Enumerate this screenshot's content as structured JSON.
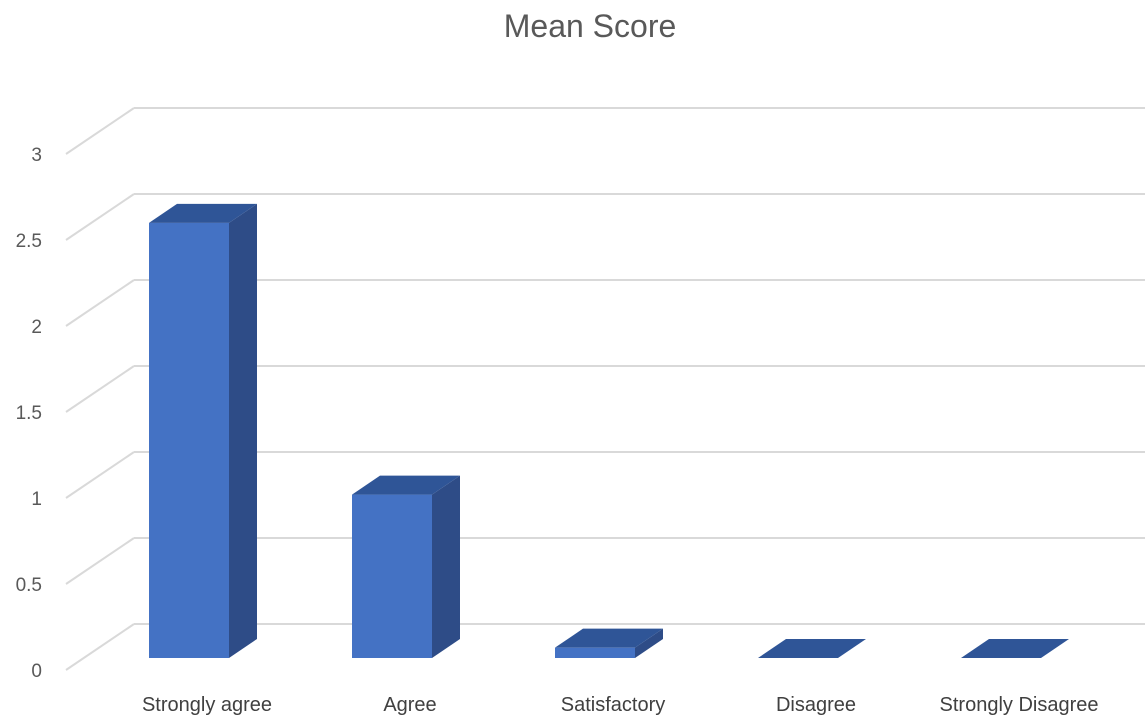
{
  "chart_data": {
    "type": "bar",
    "title": "Mean Score",
    "xlabel": "",
    "ylabel": "",
    "categories": [
      "Strongly agree",
      "Agree",
      "Satisfactory",
      "Disagree",
      "Strongly Disagree"
    ],
    "values": [
      2.53,
      0.95,
      0.06,
      0.0,
      0.0
    ],
    "ylim": [
      0,
      3
    ],
    "yticks": [
      "0",
      "0.5",
      "1",
      "1.5",
      "2",
      "2.5",
      "3"
    ],
    "grid": true,
    "legend": "none",
    "colors": {
      "bar_front": "#4472C4",
      "bar_side": "#2E4C87",
      "bar_top": "#2F5597",
      "gridline": "#D9D9D9"
    }
  }
}
